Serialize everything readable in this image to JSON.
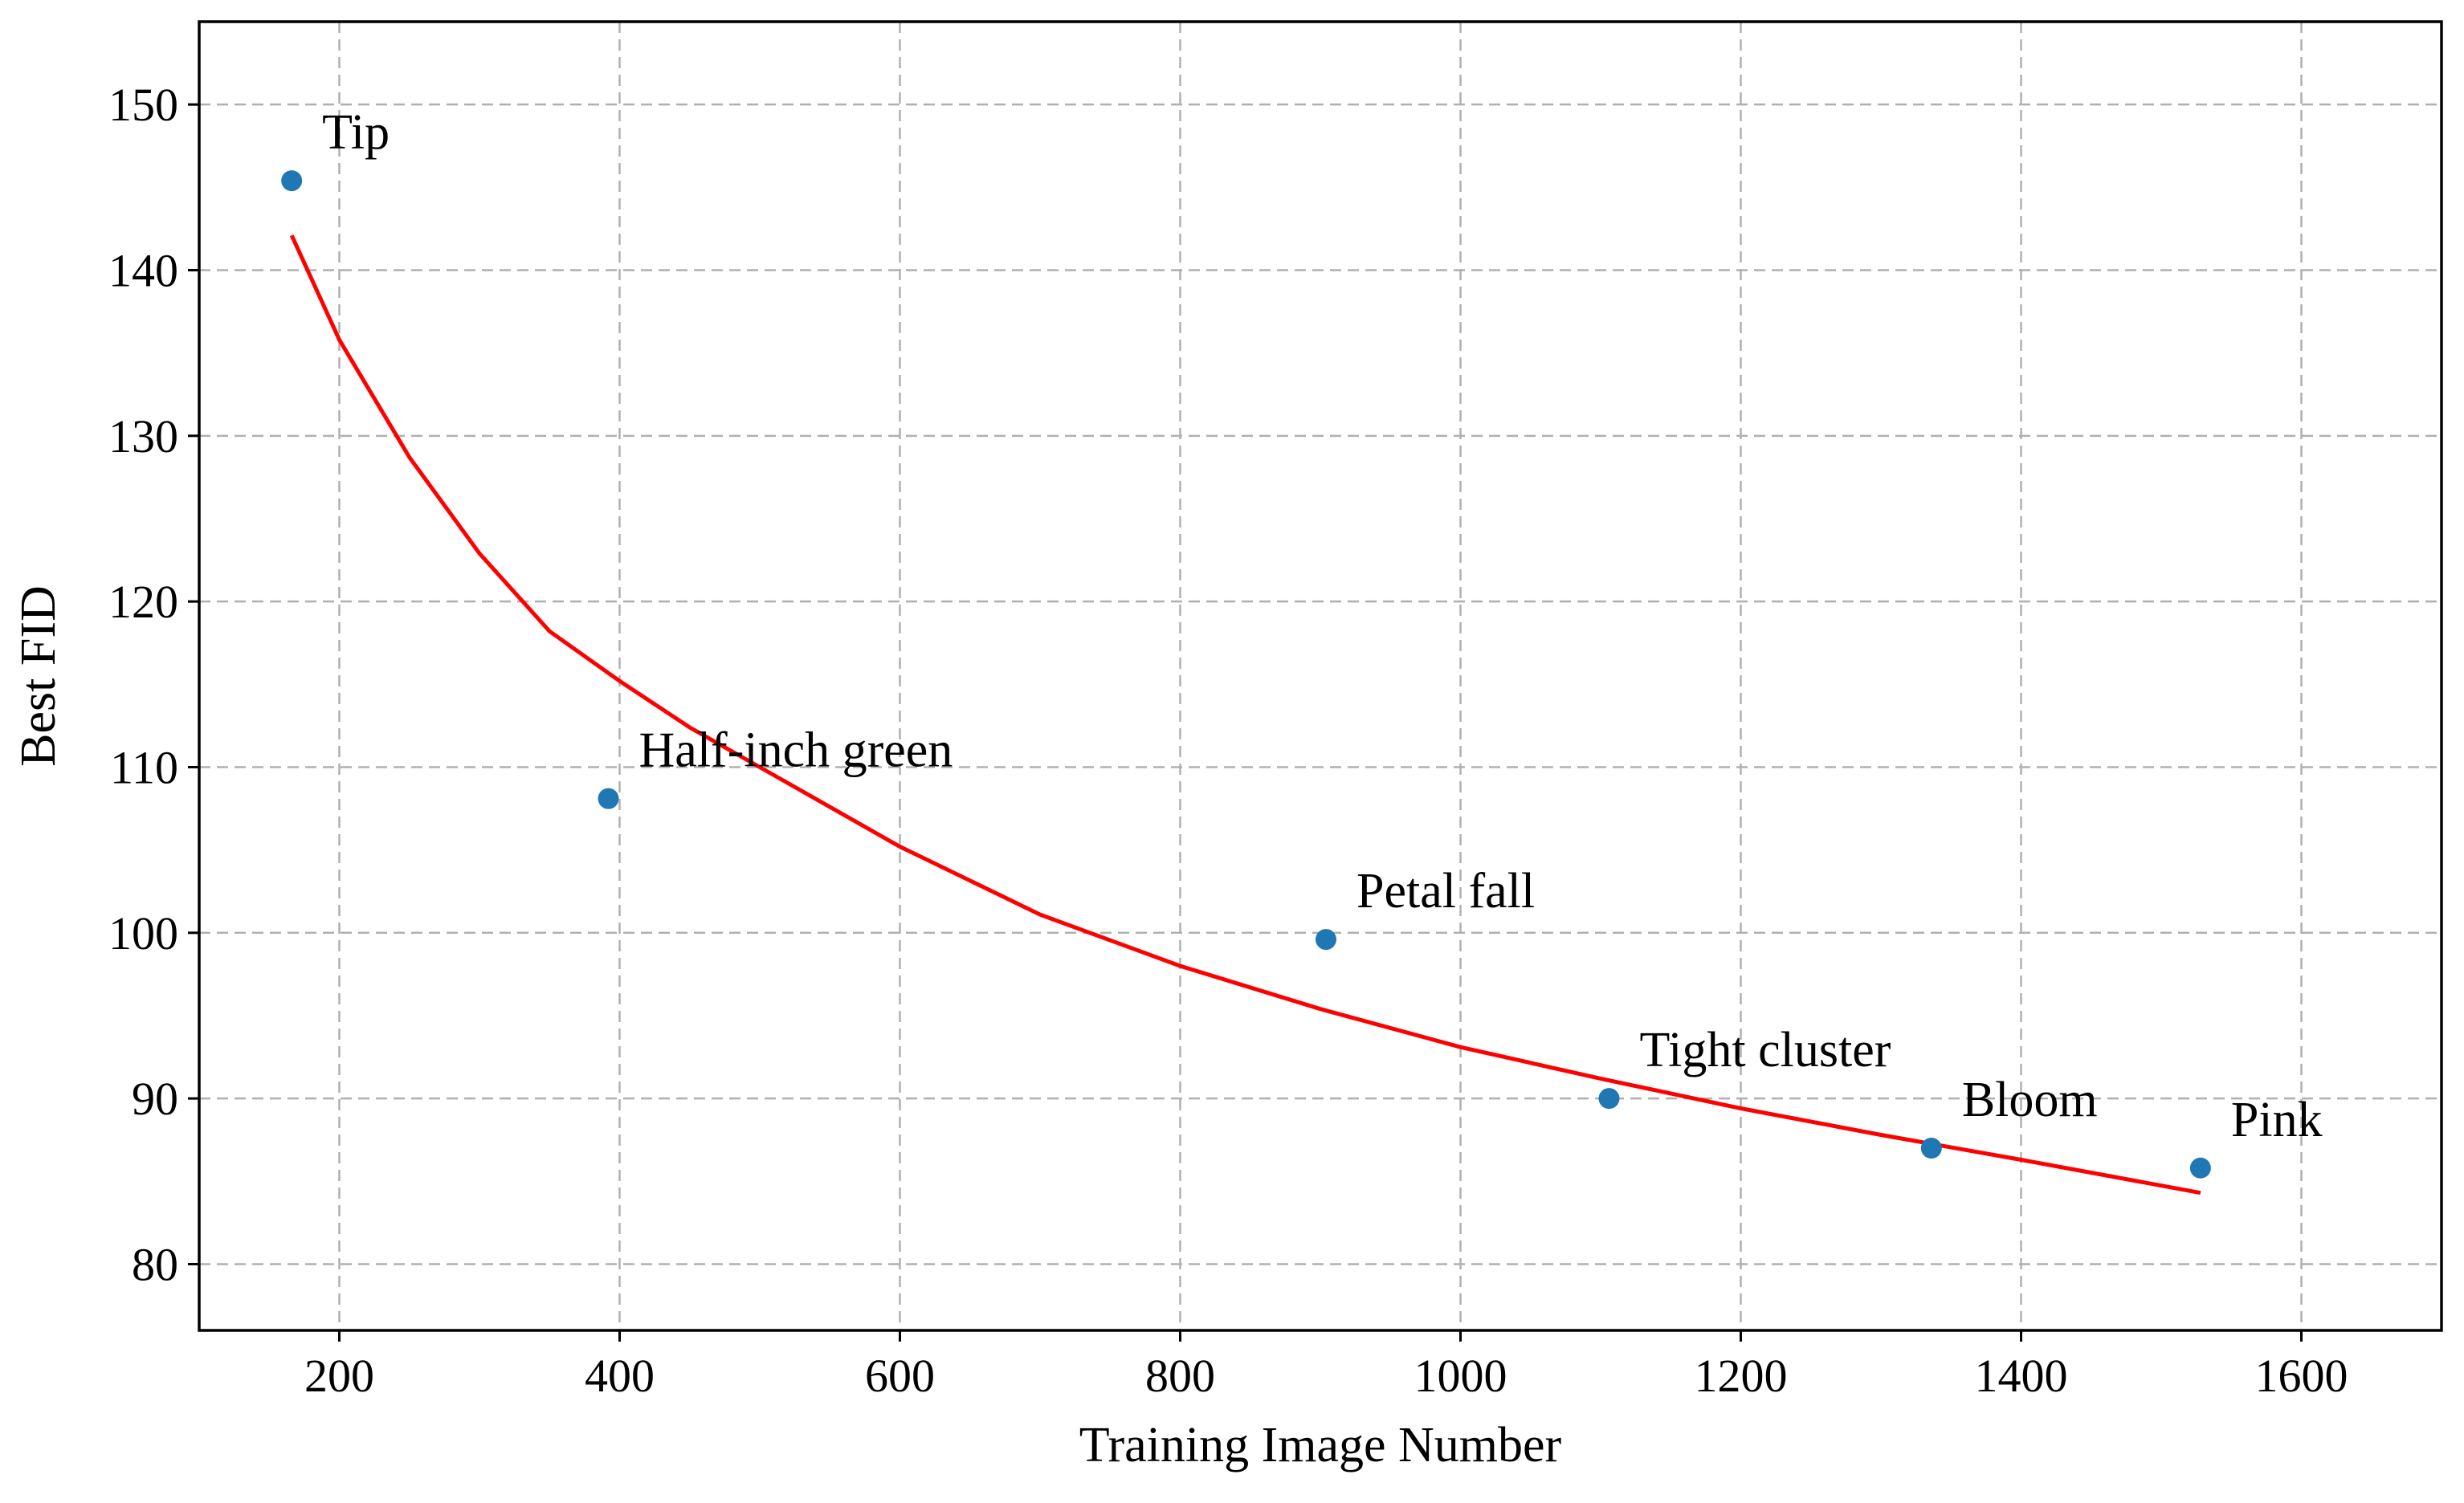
{
  "chart_data": {
    "type": "scatter",
    "title": "",
    "xlabel": "Training Image Number",
    "ylabel": "Best FID",
    "xlim": [
      100,
      1700
    ],
    "ylim": [
      76,
      155
    ],
    "xticks": [
      200,
      400,
      600,
      800,
      1000,
      1200,
      1400,
      1600
    ],
    "yticks": [
      80,
      90,
      100,
      110,
      120,
      130,
      140,
      150
    ],
    "grid": true,
    "legend": "none",
    "point_color": "#1f77b4",
    "fit_color": "#ff0000",
    "points": [
      {
        "label": "Tip",
        "x": 166,
        "y": 145.4
      },
      {
        "label": "Half-inch green",
        "x": 392,
        "y": 108.1
      },
      {
        "label": "Petal fall",
        "x": 904,
        "y": 99.6
      },
      {
        "label": "Tight cluster",
        "x": 1106,
        "y": 90.0
      },
      {
        "label": "Bloom",
        "x": 1336,
        "y": 87.0
      },
      {
        "label": "Pink",
        "x": 1528,
        "y": 85.8
      }
    ],
    "fit_curve": {
      "x": [
        166,
        200,
        250,
        300,
        350,
        400,
        450,
        500,
        600,
        700,
        800,
        900,
        1000,
        1100,
        1200,
        1300,
        1400,
        1528
      ],
      "y": [
        142.1,
        135.8,
        128.7,
        122.9,
        118.2,
        115.2,
        112.4,
        110.0,
        105.2,
        101.1,
        98.0,
        95.4,
        93.1,
        91.2,
        89.4,
        87.8,
        86.3,
        84.3
      ]
    }
  }
}
